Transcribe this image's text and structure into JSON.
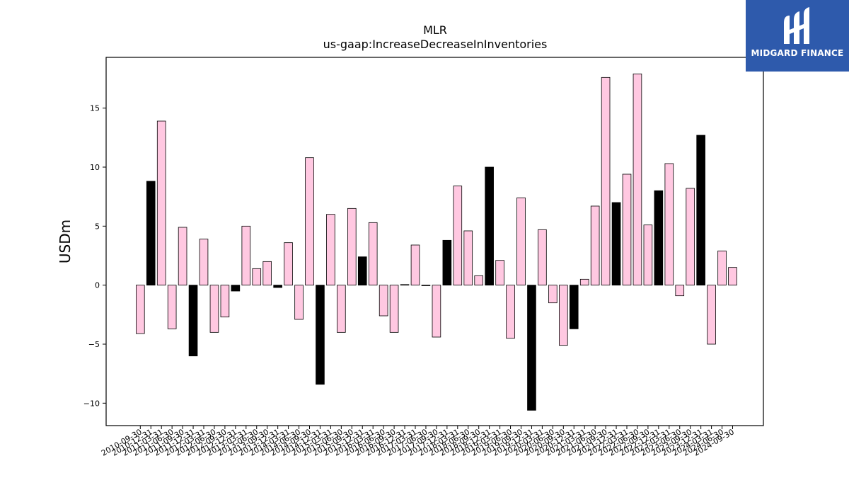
{
  "chart_data": {
    "type": "bar",
    "title": "MLR",
    "subtitle": "us-gaap:IncreaseDecreaseInInventories",
    "xlabel": "",
    "ylabel": "USDm",
    "ylim": [
      -11.9,
      19.3
    ],
    "yticks": [
      -10,
      -5,
      0,
      5,
      10,
      15
    ],
    "grid": false,
    "colors": {
      "default": "#ffc8e1",
      "highlight": "#000000",
      "edge": "#000000"
    },
    "categories": [
      "2010-09-30",
      "2010-12-31",
      "2011-03-31",
      "2011-06-30",
      "2011-09-30",
      "2011-12-31",
      "2012-03-31",
      "2012-06-30",
      "2012-09-30",
      "2012-12-31",
      "2013-03-31",
      "2013-06-30",
      "2013-09-30",
      "2013-12-31",
      "2014-03-31",
      "2014-06-30",
      "2014-09-30",
      "2014-12-31",
      "2015-03-31",
      "2015-06-30",
      "2015-09-30",
      "2015-12-31",
      "2016-03-31",
      "2016-06-30",
      "2016-09-30",
      "2016-12-31",
      "2017-03-31",
      "2017-06-30",
      "2017-09-30",
      "2017-12-31",
      "2018-03-31",
      "2018-06-30",
      "2018-09-30",
      "2018-12-31",
      "2019-03-31",
      "2019-06-30",
      "2019-09-30",
      "2019-12-31",
      "2020-03-31",
      "2020-06-30",
      "2020-09-30",
      "2020-12-31",
      "2021-03-31",
      "2021-06-30",
      "2021-09-30",
      "2021-12-31",
      "2022-03-31",
      "2022-06-30",
      "2022-09-30",
      "2022-12-31",
      "2023-03-31",
      "2023-06-30",
      "2023-09-30",
      "2023-12-31",
      "2024-03-31",
      "2024-06-30",
      "2024-09-30"
    ],
    "values": [
      -4.1,
      8.8,
      13.9,
      -3.7,
      4.9,
      -6.0,
      3.9,
      -4.0,
      -2.7,
      -0.5,
      5.0,
      1.4,
      2.0,
      -0.2,
      3.6,
      -2.9,
      10.8,
      -8.4,
      6.0,
      -4.0,
      6.5,
      2.4,
      5.3,
      -2.6,
      -4.0,
      0.05,
      3.4,
      -0.05,
      -4.4,
      3.8,
      8.4,
      4.6,
      0.8,
      10.0,
      2.1,
      -4.5,
      7.4,
      -10.6,
      4.7,
      -1.5,
      -5.1,
      -3.7,
      0.5,
      6.7,
      17.6,
      7.0,
      9.4,
      17.9,
      5.1,
      8.0,
      10.3,
      -0.9,
      8.2,
      12.7,
      -5.0,
      2.9,
      1.5
    ],
    "highlight": [
      false,
      true,
      false,
      false,
      false,
      true,
      false,
      false,
      false,
      true,
      false,
      false,
      false,
      true,
      false,
      false,
      false,
      true,
      false,
      false,
      false,
      true,
      false,
      false,
      false,
      true,
      false,
      false,
      false,
      true,
      false,
      false,
      false,
      true,
      false,
      false,
      false,
      true,
      false,
      false,
      false,
      true,
      false,
      false,
      false,
      true,
      false,
      false,
      false,
      true,
      false,
      false,
      false,
      true,
      false,
      false,
      false
    ]
  },
  "logo": {
    "text": "MIDGARD FINANCE",
    "background": "#2e5aac"
  }
}
